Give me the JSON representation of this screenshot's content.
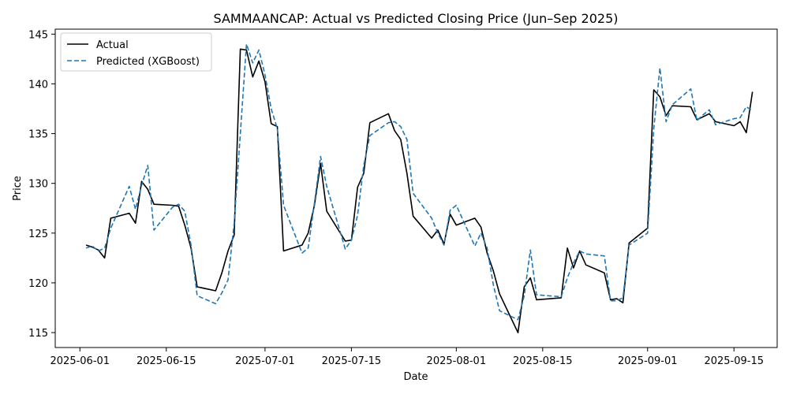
{
  "chart_data": {
    "type": "line",
    "title": "SAMMAANCAP: Actual vs Predicted Closing Price (Jun–Sep 2025)",
    "xlabel": "Date",
    "ylabel": "Price",
    "xlim": [
      "2025-05-28",
      "2025-09-22"
    ],
    "ylim": [
      113.5,
      145.5
    ],
    "x_ticks": [
      "2025-06-01",
      "2025-06-15",
      "2025-07-01",
      "2025-07-15",
      "2025-08-01",
      "2025-08-15",
      "2025-09-01",
      "2025-09-15"
    ],
    "y_ticks": [
      115,
      120,
      125,
      130,
      135,
      140,
      145
    ],
    "grid": false,
    "legend_position": "top-left",
    "series": [
      {
        "name": "Actual",
        "color": "#000000",
        "style": "solid",
        "points": [
          [
            "2025-06-02",
            123.8
          ],
          [
            "2025-06-03",
            123.6
          ],
          [
            "2025-06-04",
            123.3
          ],
          [
            "2025-06-05",
            122.5
          ],
          [
            "2025-06-06",
            126.5
          ],
          [
            "2025-06-09",
            127.0
          ],
          [
            "2025-06-10",
            126.0
          ],
          [
            "2025-06-11",
            130.2
          ],
          [
            "2025-06-12",
            129.4
          ],
          [
            "2025-06-13",
            127.9
          ],
          [
            "2025-06-16",
            127.8
          ],
          [
            "2025-06-17",
            127.7
          ],
          [
            "2025-06-18",
            125.8
          ],
          [
            "2025-06-19",
            123.5
          ],
          [
            "2025-06-20",
            119.6
          ],
          [
            "2025-06-23",
            119.2
          ],
          [
            "2025-06-24",
            121.0
          ],
          [
            "2025-06-25",
            123.2
          ],
          [
            "2025-06-26",
            124.8
          ],
          [
            "2025-06-27",
            143.5
          ],
          [
            "2025-06-28",
            143.4
          ],
          [
            "2025-06-29",
            140.7
          ],
          [
            "2025-06-30",
            142.3
          ],
          [
            "2025-07-01",
            140.2
          ],
          [
            "2025-07-02",
            136.0
          ],
          [
            "2025-07-03",
            135.7
          ],
          [
            "2025-07-04",
            123.2
          ],
          [
            "2025-07-07",
            123.8
          ],
          [
            "2025-07-08",
            125.0
          ],
          [
            "2025-07-09",
            127.8
          ],
          [
            "2025-07-10",
            132.0
          ],
          [
            "2025-07-11",
            127.2
          ],
          [
            "2025-07-14",
            124.2
          ],
          [
            "2025-07-15",
            124.3
          ],
          [
            "2025-07-16",
            129.6
          ],
          [
            "2025-07-17",
            131.0
          ],
          [
            "2025-07-18",
            136.1
          ],
          [
            "2025-07-21",
            137.0
          ],
          [
            "2025-07-22",
            135.3
          ],
          [
            "2025-07-23",
            134.4
          ],
          [
            "2025-07-24",
            131.0
          ],
          [
            "2025-07-25",
            126.7
          ],
          [
            "2025-07-28",
            124.5
          ],
          [
            "2025-07-29",
            125.3
          ],
          [
            "2025-07-30",
            123.9
          ],
          [
            "2025-07-31",
            126.9
          ],
          [
            "2025-08-01",
            125.8
          ],
          [
            "2025-08-04",
            126.5
          ],
          [
            "2025-08-05",
            125.6
          ],
          [
            "2025-08-06",
            123.0
          ],
          [
            "2025-08-07",
            121.2
          ],
          [
            "2025-08-08",
            118.9
          ],
          [
            "2025-08-11",
            115.0
          ],
          [
            "2025-08-12",
            119.6
          ],
          [
            "2025-08-13",
            120.5
          ],
          [
            "2025-08-14",
            118.3
          ],
          [
            "2025-08-18",
            118.5
          ],
          [
            "2025-08-19",
            123.5
          ],
          [
            "2025-08-20",
            121.5
          ],
          [
            "2025-08-21",
            123.2
          ],
          [
            "2025-08-22",
            121.8
          ],
          [
            "2025-08-25",
            121.0
          ],
          [
            "2025-08-26",
            118.3
          ],
          [
            "2025-08-27",
            118.4
          ],
          [
            "2025-08-28",
            118.0
          ],
          [
            "2025-08-29",
            124.0
          ],
          [
            "2025-09-01",
            125.5
          ],
          [
            "2025-09-02",
            139.4
          ],
          [
            "2025-09-03",
            138.7
          ],
          [
            "2025-09-04",
            136.8
          ],
          [
            "2025-09-05",
            137.8
          ],
          [
            "2025-09-08",
            137.7
          ],
          [
            "2025-09-09",
            136.4
          ],
          [
            "2025-09-10",
            136.7
          ],
          [
            "2025-09-11",
            137.0
          ],
          [
            "2025-09-12",
            136.2
          ],
          [
            "2025-09-15",
            135.8
          ],
          [
            "2025-09-16",
            136.2
          ],
          [
            "2025-09-17",
            135.1
          ],
          [
            "2025-09-18",
            139.2
          ]
        ]
      },
      {
        "name": "Predicted (XGBoost)",
        "color": "#1f77b4",
        "style": "dashed",
        "points": [
          [
            "2025-06-02",
            123.5
          ],
          [
            "2025-06-03",
            123.7
          ],
          [
            "2025-06-04",
            123.2
          ],
          [
            "2025-06-05",
            123.5
          ],
          [
            "2025-06-06",
            125.5
          ],
          [
            "2025-06-09",
            129.7
          ],
          [
            "2025-06-10",
            127.4
          ],
          [
            "2025-06-11",
            129.8
          ],
          [
            "2025-06-12",
            131.8
          ],
          [
            "2025-06-13",
            125.3
          ],
          [
            "2025-06-16",
            127.6
          ],
          [
            "2025-06-17",
            127.9
          ],
          [
            "2025-06-18",
            127.2
          ],
          [
            "2025-06-19",
            123.8
          ],
          [
            "2025-06-20",
            118.7
          ],
          [
            "2025-06-23",
            117.9
          ],
          [
            "2025-06-24",
            119.0
          ],
          [
            "2025-06-25",
            120.3
          ],
          [
            "2025-06-26",
            126.0
          ],
          [
            "2025-06-27",
            135.0
          ],
          [
            "2025-06-28",
            144.0
          ],
          [
            "2025-06-29",
            142.1
          ],
          [
            "2025-06-30",
            143.4
          ],
          [
            "2025-07-01",
            140.9
          ],
          [
            "2025-07-02",
            137.5
          ],
          [
            "2025-07-03",
            135.5
          ],
          [
            "2025-07-04",
            127.8
          ],
          [
            "2025-07-07",
            123.0
          ],
          [
            "2025-07-08",
            123.5
          ],
          [
            "2025-07-09",
            128.0
          ],
          [
            "2025-07-10",
            132.7
          ],
          [
            "2025-07-11",
            129.7
          ],
          [
            "2025-07-14",
            123.4
          ],
          [
            "2025-07-15",
            124.3
          ],
          [
            "2025-07-16",
            126.8
          ],
          [
            "2025-07-17",
            131.8
          ],
          [
            "2025-07-18",
            134.8
          ],
          [
            "2025-07-21",
            136.1
          ],
          [
            "2025-07-22",
            136.2
          ],
          [
            "2025-07-23",
            135.7
          ],
          [
            "2025-07-24",
            134.4
          ],
          [
            "2025-07-25",
            129.0
          ],
          [
            "2025-07-28",
            126.5
          ],
          [
            "2025-07-29",
            125.0
          ],
          [
            "2025-07-30",
            123.8
          ],
          [
            "2025-07-31",
            127.3
          ],
          [
            "2025-08-01",
            127.8
          ],
          [
            "2025-08-04",
            123.7
          ],
          [
            "2025-08-05",
            125.0
          ],
          [
            "2025-08-06",
            123.5
          ],
          [
            "2025-08-07",
            119.8
          ],
          [
            "2025-08-08",
            117.2
          ],
          [
            "2025-08-11",
            116.3
          ],
          [
            "2025-08-12",
            118.7
          ],
          [
            "2025-08-13",
            123.3
          ],
          [
            "2025-08-14",
            118.8
          ],
          [
            "2025-08-18",
            118.6
          ],
          [
            "2025-08-19",
            120.5
          ],
          [
            "2025-08-20",
            122.0
          ],
          [
            "2025-08-21",
            123.2
          ],
          [
            "2025-08-22",
            122.9
          ],
          [
            "2025-08-25",
            122.7
          ],
          [
            "2025-08-26",
            118.2
          ],
          [
            "2025-08-27",
            118.2
          ],
          [
            "2025-08-28",
            118.5
          ],
          [
            "2025-08-29",
            123.8
          ],
          [
            "2025-09-01",
            125.0
          ],
          [
            "2025-09-02",
            135.5
          ],
          [
            "2025-09-03",
            141.6
          ],
          [
            "2025-09-04",
            136.2
          ],
          [
            "2025-09-05",
            137.9
          ],
          [
            "2025-09-08",
            139.5
          ],
          [
            "2025-09-09",
            136.3
          ],
          [
            "2025-09-10",
            136.9
          ],
          [
            "2025-09-11",
            137.4
          ],
          [
            "2025-09-12",
            135.9
          ],
          [
            "2025-09-15",
            136.5
          ],
          [
            "2025-09-16",
            136.6
          ],
          [
            "2025-09-17",
            137.7
          ],
          [
            "2025-09-18",
            137.3
          ]
        ]
      }
    ]
  }
}
